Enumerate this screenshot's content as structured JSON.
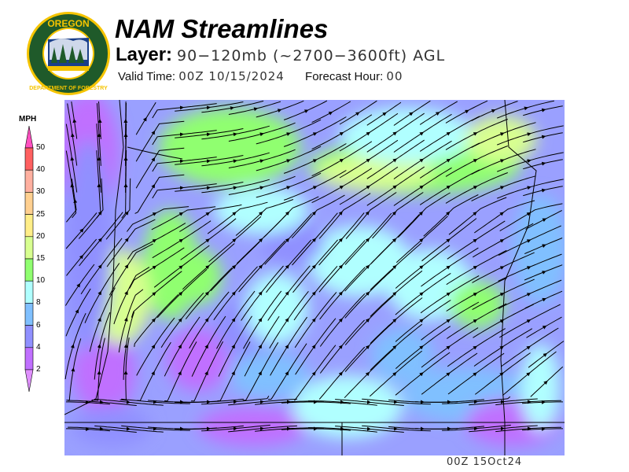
{
  "header": {
    "title": "NAM Streamlines",
    "layer_label": "Layer:",
    "layer_value": "90−120mb (~2700−3600ft) AGL",
    "valid_label": "Valid Time:",
    "valid_value": "00Z 10/15/2024",
    "forecast_label": "Forecast Hour:",
    "forecast_value": "00"
  },
  "logo": {
    "text_top": "OREGON",
    "text_bottom": "DEPARTMENT OF FORESTRY",
    "colors": {
      "ring": "#1f5a2a",
      "border": "#f5c400"
    }
  },
  "legend": {
    "unit": "MPH",
    "bins": [
      {
        "label": "50",
        "color": "#ff6060"
      },
      {
        "label": "40",
        "color": "#ffb0a0"
      },
      {
        "label": "30",
        "color": "#ffd090"
      },
      {
        "label": "25",
        "color": "#ffee88"
      },
      {
        "label": "20",
        "color": "#d8ff90"
      },
      {
        "label": "15",
        "color": "#90ff70"
      },
      {
        "label": "10",
        "color": "#b0ffff"
      },
      {
        "label": "8",
        "color": "#80c0ff"
      },
      {
        "label": "6",
        "color": "#9090ff"
      },
      {
        "label": "4",
        "color": "#c070ff"
      },
      {
        "label": "2",
        "color": ""
      }
    ],
    "over_color": "#ff50c0",
    "under_color": "#e090ff"
  },
  "map": {
    "stamp": "00Z 15Oct24"
  }
}
